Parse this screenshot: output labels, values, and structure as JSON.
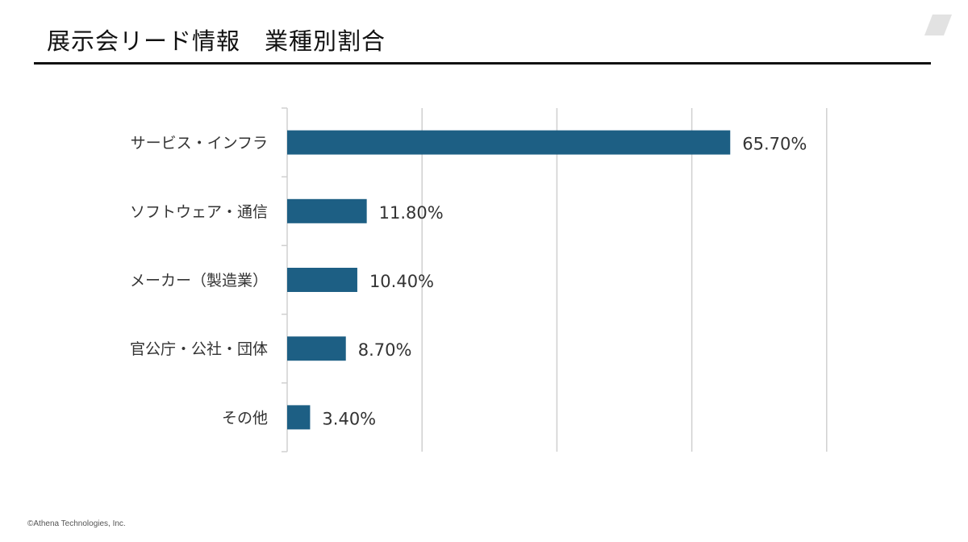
{
  "slide": {
    "title": "展示会リード情報　業種別割合",
    "footer": "©Athena Technologies, Inc."
  },
  "colors": {
    "bar": "#1d5f84",
    "grid": "#d0d0d0",
    "rule": "#111111",
    "logo": "#e2e2e2"
  },
  "icons": {
    "corner_logo": "parallelogram-logo-icon"
  },
  "chart_data": {
    "type": "bar",
    "orientation": "horizontal",
    "title": "",
    "xlabel": "",
    "ylabel": "",
    "categories": [
      "サービス・インフラ",
      "ソフトウェア・通信",
      "メーカー（製造業）",
      "官公庁・公社・団体",
      "その他"
    ],
    "values": [
      65.7,
      11.8,
      10.4,
      8.7,
      3.4
    ],
    "value_labels": [
      "65.70%",
      "11.80%",
      "10.40%",
      "8.70%",
      "3.40%"
    ],
    "xlim": [
      0,
      80
    ],
    "grid": true,
    "legend": "none"
  }
}
